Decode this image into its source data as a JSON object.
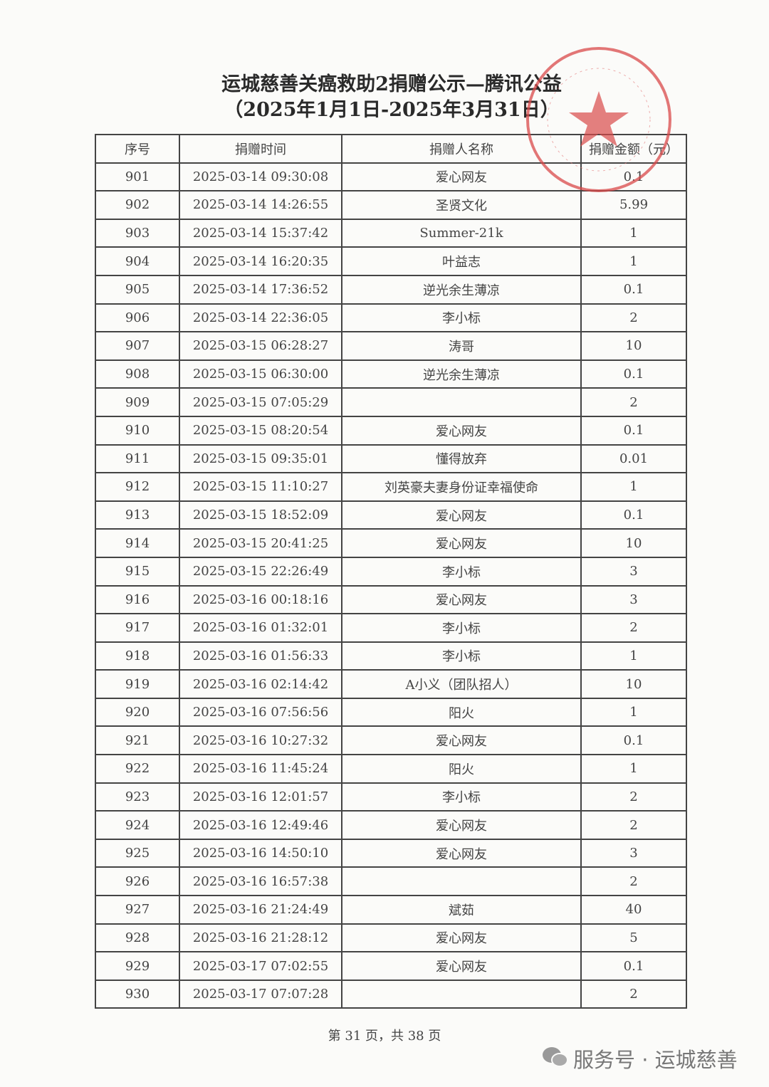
{
  "header": {
    "title": "运城慈善关癌救助2捐赠公示—腾讯公益",
    "subtitle": "（2025年1月1日-2025年3月31日）"
  },
  "table": {
    "columns": [
      "序号",
      "捐赠时间",
      "捐赠人名称",
      "捐赠金额（元）"
    ],
    "rows": [
      [
        "901",
        "2025-03-14 09:30:08",
        "爱心网友",
        "0.1"
      ],
      [
        "902",
        "2025-03-14 14:26:55",
        "圣贤文化",
        "5.99"
      ],
      [
        "903",
        "2025-03-14 15:37:42",
        "Summer-21k",
        "1"
      ],
      [
        "904",
        "2025-03-14 16:20:35",
        "叶益志",
        "1"
      ],
      [
        "905",
        "2025-03-14 17:36:52",
        "逆光余生薄凉",
        "0.1"
      ],
      [
        "906",
        "2025-03-14 22:36:05",
        "李小标",
        "2"
      ],
      [
        "907",
        "2025-03-15 06:28:27",
        "涛哥",
        "10"
      ],
      [
        "908",
        "2025-03-15 06:30:00",
        "逆光余生薄凉",
        "0.1"
      ],
      [
        "909",
        "2025-03-15 07:05:29",
        null,
        "2"
      ],
      [
        "910",
        "2025-03-15 08:20:54",
        "爱心网友",
        "0.1"
      ],
      [
        "911",
        "2025-03-15 09:35:01",
        "懂得放弃",
        "0.01"
      ],
      [
        "912",
        "2025-03-15 11:10:27",
        "刘英豪夫妻身份证幸福使命",
        "1"
      ],
      [
        "913",
        "2025-03-15 18:52:09",
        "爱心网友",
        "0.1"
      ],
      [
        "914",
        "2025-03-15 20:41:25",
        "爱心网友",
        "10"
      ],
      [
        "915",
        "2025-03-15 22:26:49",
        "李小标",
        "3"
      ],
      [
        "916",
        "2025-03-16 00:18:16",
        "爱心网友",
        "3"
      ],
      [
        "917",
        "2025-03-16 01:32:01",
        "李小标",
        "2"
      ],
      [
        "918",
        "2025-03-16 01:56:33",
        "李小标",
        "1"
      ],
      [
        "919",
        "2025-03-16 02:14:42",
        "A小义（团队招人）",
        "10"
      ],
      [
        "920",
        "2025-03-16 07:56:56",
        "阳火",
        "1"
      ],
      [
        "921",
        "2025-03-16 10:27:32",
        "爱心网友",
        "0.1"
      ],
      [
        "922",
        "2025-03-16 11:45:24",
        "阳火",
        "1"
      ],
      [
        "923",
        "2025-03-16 12:01:57",
        "李小标",
        "2"
      ],
      [
        "924",
        "2025-03-16 12:49:46",
        "爱心网友",
        "2"
      ],
      [
        "925",
        "2025-03-16 14:50:10",
        "爱心网友",
        "3"
      ],
      [
        "926",
        "2025-03-16 16:57:38",
        null,
        "2"
      ],
      [
        "927",
        "2025-03-16 21:24:49",
        "斌茹",
        "40"
      ],
      [
        "928",
        "2025-03-16 21:28:12",
        "爱心网友",
        "5"
      ],
      [
        "929",
        "2025-03-17 07:02:55",
        "爱心网友",
        "0.1"
      ],
      [
        "930",
        "2025-03-17 07:07:28",
        null,
        "2"
      ]
    ]
  },
  "footer": {
    "page": "第 31 页，共 38 页",
    "watermark": "服务号 · 运城慈善"
  }
}
